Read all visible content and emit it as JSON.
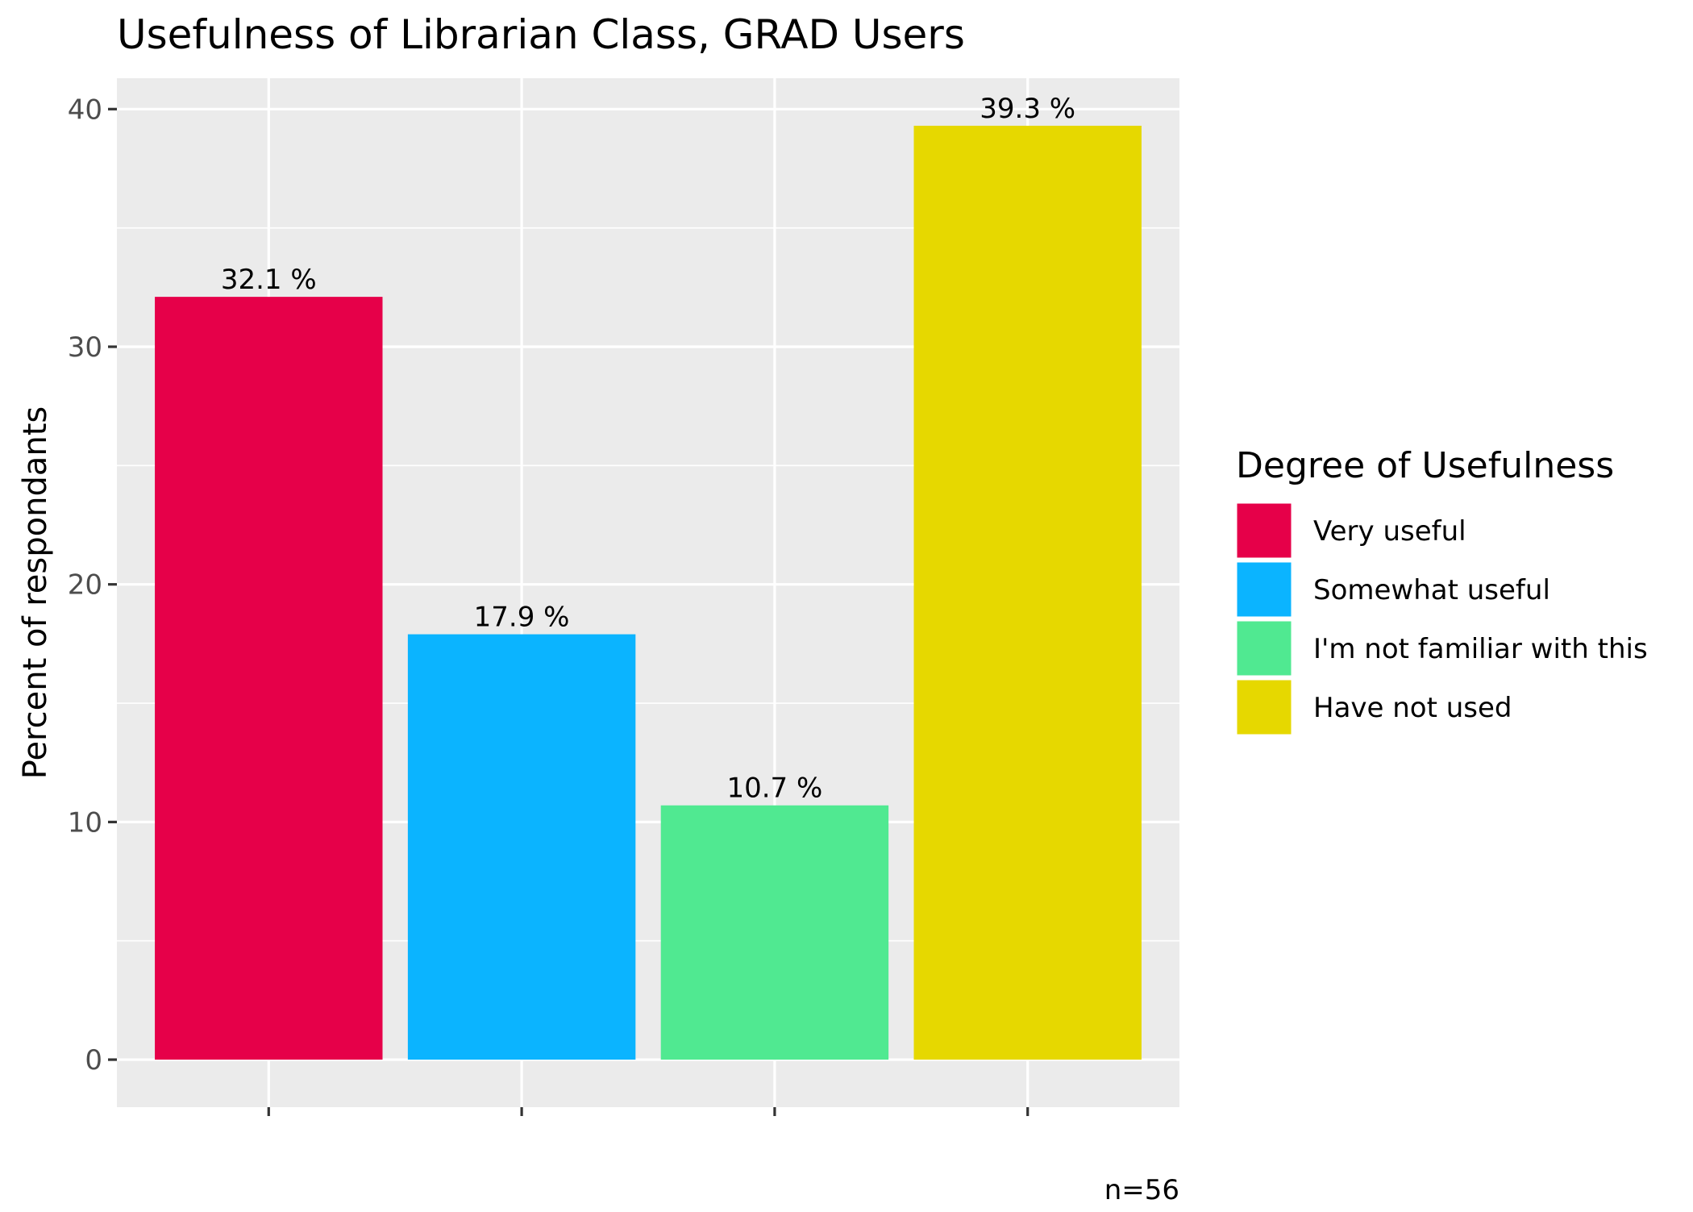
{
  "chart_data": {
    "type": "bar",
    "title": "Usefulness of Librarian Class,  GRAD Users",
    "xlabel": "",
    "ylabel": "Percent of respondants",
    "ylim": [
      -2,
      41.3
    ],
    "yticks": [
      0,
      10,
      20,
      30,
      40
    ],
    "categories": [
      "Very useful",
      "Somewhat useful",
      "I'm not familiar with this",
      "Have not used"
    ],
    "values": [
      32.1,
      17.9,
      10.7,
      39.3
    ],
    "data_labels": [
      "32.1 %",
      "17.9 %",
      "10.7 %",
      "39.3 %"
    ],
    "colors": [
      "#E60049",
      "#0BB4FF",
      "#50E991",
      "#E6D800"
    ],
    "legend": {
      "title": "Degree of Usefulness",
      "position": "right",
      "entries": [
        "Very useful",
        "Somewhat useful",
        "I'm not familiar with this",
        "Have not used"
      ]
    },
    "caption": "n=56",
    "grid": true,
    "panel_background": "#EBEBEB"
  }
}
